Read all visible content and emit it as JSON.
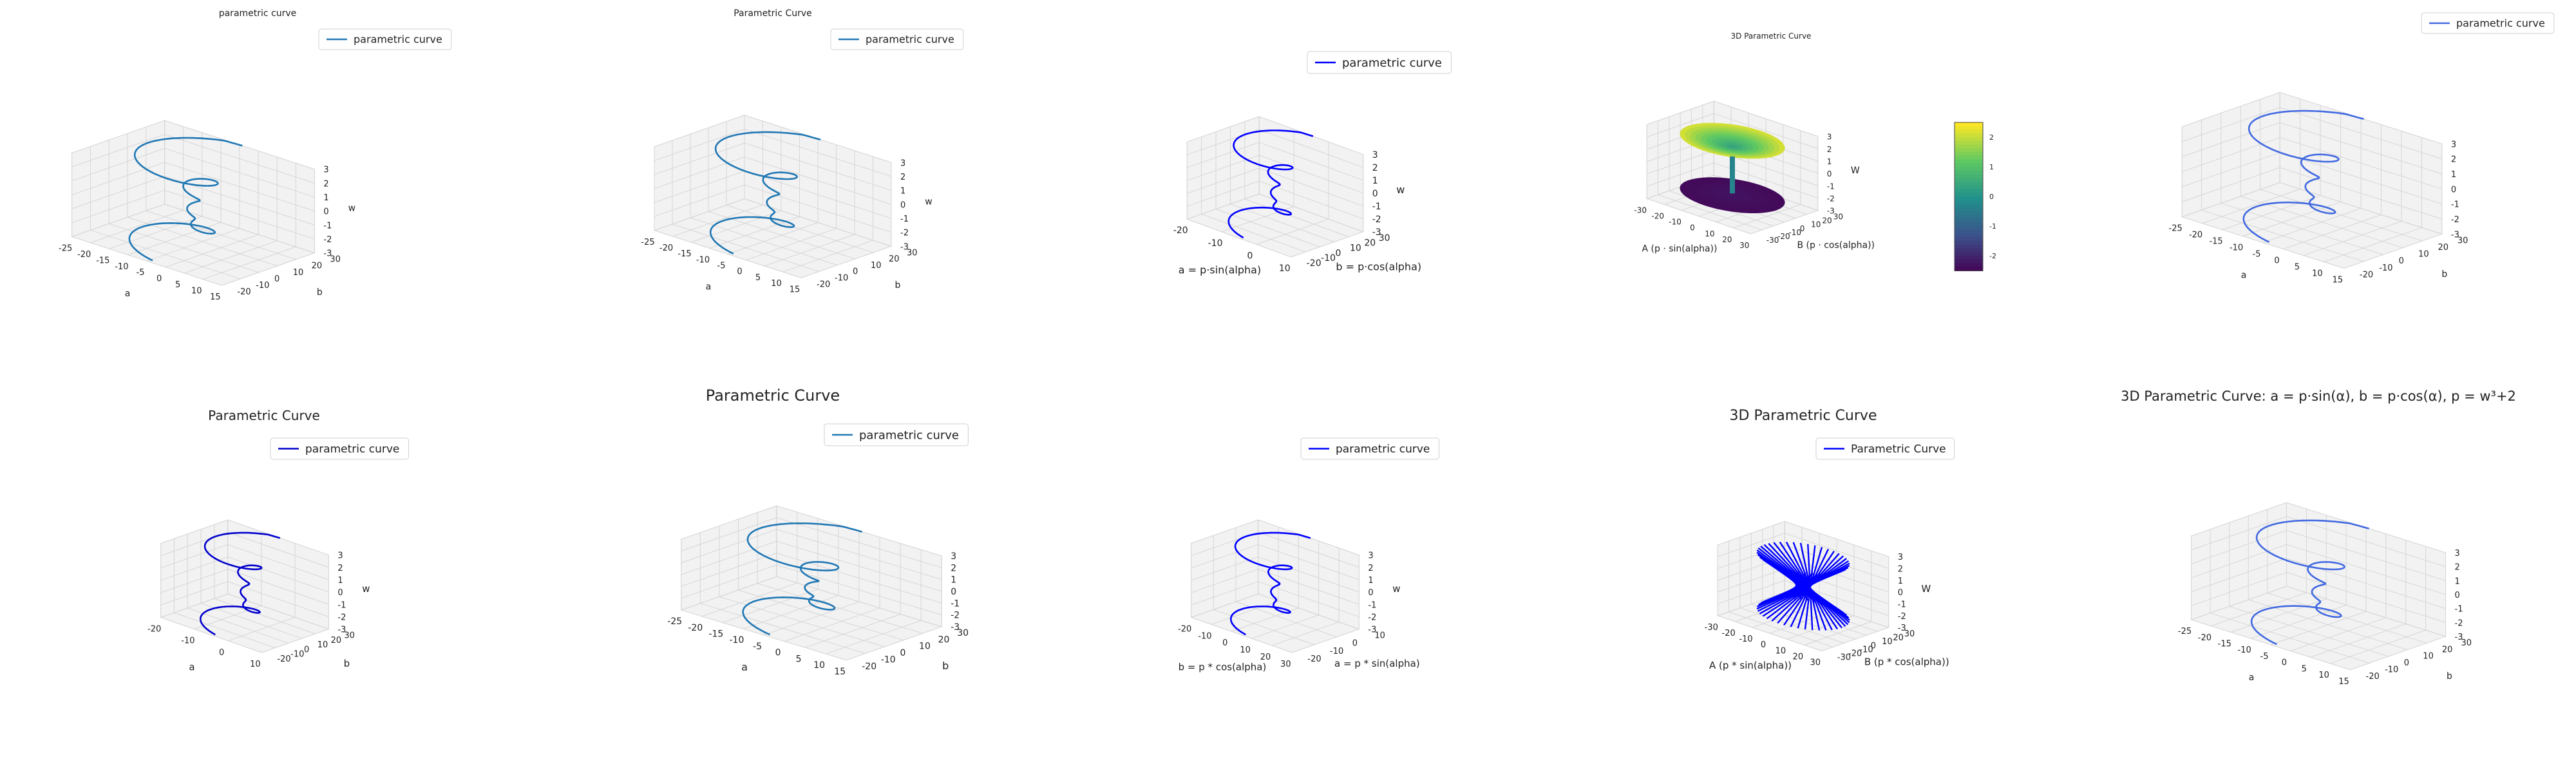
{
  "chart_data": [
    {
      "type": "line3d",
      "title": "parametric curve",
      "xlabel": "a",
      "ylabel": "b",
      "zlabel": "w",
      "xticks": [
        "-25",
        "-20",
        "-15",
        "-10",
        "-5",
        "0",
        "5",
        "10",
        "15"
      ],
      "yticks": [
        "-20",
        "-10",
        "0",
        "10",
        "20",
        "30"
      ],
      "zticks": [
        "-3",
        "-2",
        "-1",
        "0",
        "1",
        "2",
        "3"
      ],
      "series": [
        {
          "name": "parametric curve",
          "color": "#1f77b4"
        }
      ],
      "legend": "top"
    },
    {
      "type": "line3d",
      "title": "Parametric Curve",
      "xlabel": "a",
      "ylabel": "b",
      "zlabel": "w",
      "xticks": [
        "-25",
        "-20",
        "-15",
        "-10",
        "-5",
        "0",
        "5",
        "10",
        "15"
      ],
      "yticks": [
        "-20",
        "-10",
        "0",
        "10",
        "20",
        "30"
      ],
      "zticks": [
        "-3",
        "-2",
        "-1",
        "0",
        "1",
        "2",
        "3"
      ],
      "series": [
        {
          "name": "parametric curve",
          "color": "#1f77b4"
        }
      ],
      "legend": "top-right"
    },
    {
      "type": "line3d",
      "title": "",
      "xlabel": "a = p·sin(alpha)",
      "ylabel": "b = p·cos(alpha)",
      "zlabel": "w",
      "xticks": [
        "-20",
        "-10",
        "0",
        "10"
      ],
      "yticks": [
        "-20",
        "-10",
        "0",
        "10",
        "20",
        "30"
      ],
      "zticks": [
        "-3",
        "-2",
        "-1",
        "0",
        "1",
        "2",
        "3"
      ],
      "series": [
        {
          "name": "parametric curve",
          "color": "#0000ff"
        }
      ],
      "legend": "top-right"
    },
    {
      "type": "surface3d",
      "title": "3D Parametric Curve",
      "xlabel": "A (p · sin(alpha))",
      "ylabel": "B (p · cos(alpha))",
      "zlabel": "W",
      "xticks": [
        "-30",
        "-20",
        "-10",
        "0",
        "10",
        "20",
        "30"
      ],
      "yticks": [
        "-30",
        "-20",
        "-10",
        "0",
        "10",
        "20",
        "30"
      ],
      "zticks": [
        "-3",
        "-2",
        "-1",
        "0",
        "1",
        "2",
        "3"
      ],
      "colorbar_ticks": [
        "-2",
        "-1",
        "0",
        "1",
        "2"
      ],
      "colormap": "viridis"
    },
    {
      "type": "line3d",
      "title": "",
      "xlabel": "a",
      "ylabel": "b",
      "zlabel": "",
      "xticks": [
        "-25",
        "-20",
        "-15",
        "-10",
        "-5",
        "0",
        "5",
        "10",
        "15"
      ],
      "yticks": [
        "-20",
        "-10",
        "0",
        "10",
        "20",
        "30"
      ],
      "zticks": [
        "-3",
        "-2",
        "-1",
        "0",
        "1",
        "2",
        "3"
      ],
      "series": [
        {
          "name": "parametric curve",
          "color": "#4169e1"
        }
      ],
      "legend": "top-right"
    },
    {
      "type": "line3d",
      "title": "Parametric Curve",
      "xlabel": "a",
      "ylabel": "b",
      "zlabel": "w",
      "xticks": [
        "-20",
        "-10",
        "0",
        "10"
      ],
      "yticks": [
        "-20",
        "-10",
        "0",
        "10",
        "20",
        "30"
      ],
      "zticks": [
        "-3",
        "-2",
        "-1",
        "0",
        "1",
        "2",
        "3"
      ],
      "series": [
        {
          "name": "parametric curve",
          "color": "#0000cd"
        }
      ],
      "legend": "top-right"
    },
    {
      "type": "line3d",
      "title": "Parametric Curve",
      "xlabel": "a",
      "ylabel": "b",
      "zlabel": "",
      "xticks": [
        "-25",
        "-20",
        "-15",
        "-10",
        "-5",
        "0",
        "5",
        "10",
        "15"
      ],
      "yticks": [
        "-20",
        "-10",
        "0",
        "10",
        "20",
        "30"
      ],
      "zticks": [
        "-3",
        "-2",
        "-1",
        "0",
        "1",
        "2",
        "3"
      ],
      "series": [
        {
          "name": "parametric curve",
          "color": "#1f77b4"
        }
      ],
      "legend": "top-right"
    },
    {
      "type": "line3d",
      "title": "",
      "xlabel": "b = p * cos(alpha)",
      "ylabel": "a = p * sin(alpha)",
      "zlabel": "w",
      "xticks": [
        "-20",
        "-10",
        "0",
        "10",
        "20",
        "30"
      ],
      "yticks": [
        "-20",
        "-10",
        "0",
        "10"
      ],
      "zticks": [
        "-3",
        "-2",
        "-1",
        "0",
        "1",
        "2",
        "3"
      ],
      "series": [
        {
          "name": "parametric curve",
          "color": "#0000ff"
        }
      ],
      "legend": "top-right"
    },
    {
      "type": "line3d",
      "title": "3D Parametric Curve",
      "xlabel": "A (p * sin(alpha))",
      "ylabel": "B (p * cos(alpha))",
      "zlabel": "W",
      "xticks": [
        "-30",
        "-20",
        "-10",
        "0",
        "10",
        "20",
        "30"
      ],
      "yticks": [
        "-30",
        "-20",
        "-10",
        "0",
        "10",
        "20",
        "30"
      ],
      "zticks": [
        "-3",
        "-2",
        "-1",
        "0",
        "1",
        "2",
        "3"
      ],
      "series": [
        {
          "name": "Parametric Curve",
          "color": "#0000ff"
        }
      ],
      "legend": "top"
    },
    {
      "type": "line3d",
      "title": "3D Parametric Curve: a = p·sin(α), b = p·cos(α), p = w³+2",
      "xlabel": "a",
      "ylabel": "b",
      "zlabel": "",
      "xticks": [
        "-25",
        "-20",
        "-15",
        "-10",
        "-5",
        "0",
        "5",
        "10",
        "15"
      ],
      "yticks": [
        "-20",
        "-10",
        "0",
        "10",
        "20",
        "30"
      ],
      "zticks": [
        "-3",
        "-2",
        "-1",
        "0",
        "1",
        "2",
        "3"
      ],
      "series": [
        {
          "name": "",
          "color": "#4169e1"
        }
      ],
      "legend": "none"
    }
  ]
}
